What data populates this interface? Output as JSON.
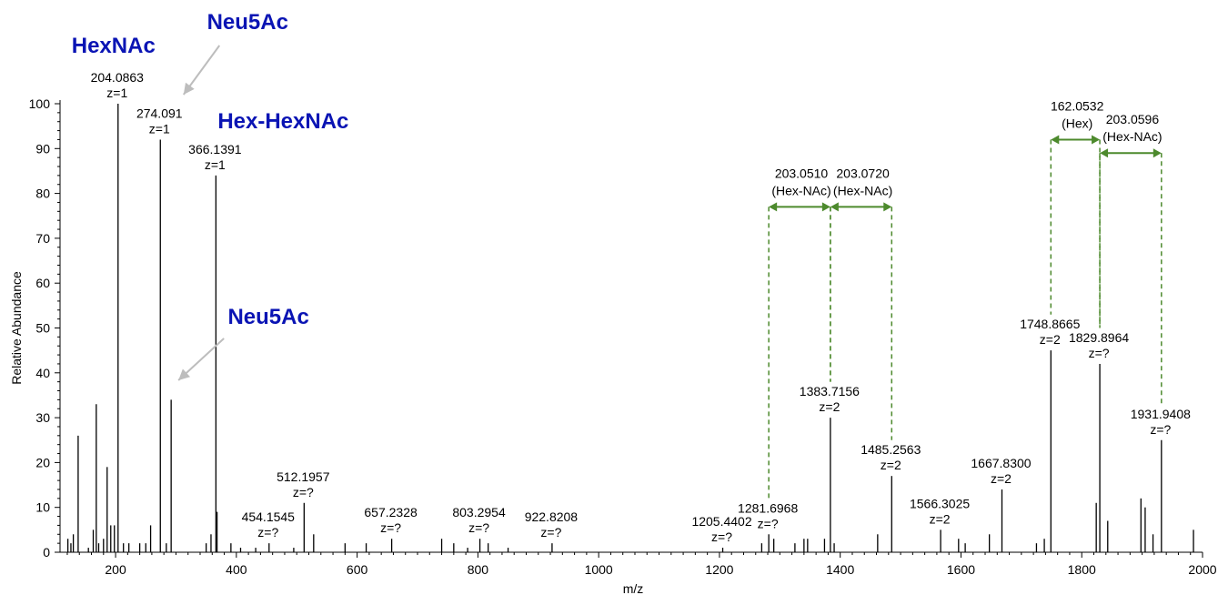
{
  "chart_data": {
    "type": "line",
    "subtype": "mass-spectrum-sticks",
    "xlabel": "m/z",
    "ylabel": "Relative Abundance",
    "xlim": [
      108,
      2000
    ],
    "ylim": [
      0,
      100
    ],
    "x_ticks": [
      200,
      400,
      600,
      800,
      1000,
      1200,
      1400,
      1600,
      1800,
      2000
    ],
    "y_ticks": [
      0,
      10,
      20,
      30,
      40,
      50,
      60,
      70,
      80,
      90,
      100
    ],
    "peaks": [
      {
        "mz": 121,
        "intensity": 3
      },
      {
        "mz": 126,
        "intensity": 2
      },
      {
        "mz": 130,
        "intensity": 4
      },
      {
        "mz": 138,
        "intensity": 26
      },
      {
        "mz": 155,
        "intensity": 1
      },
      {
        "mz": 163,
        "intensity": 5
      },
      {
        "mz": 168,
        "intensity": 33
      },
      {
        "mz": 172,
        "intensity": 2
      },
      {
        "mz": 180,
        "intensity": 3
      },
      {
        "mz": 186,
        "intensity": 19
      },
      {
        "mz": 192,
        "intensity": 6
      },
      {
        "mz": 198,
        "intensity": 6
      },
      {
        "mz": 204.0863,
        "intensity": 100
      },
      {
        "mz": 213,
        "intensity": 2
      },
      {
        "mz": 222,
        "intensity": 2
      },
      {
        "mz": 240,
        "intensity": 2
      },
      {
        "mz": 250,
        "intensity": 2
      },
      {
        "mz": 258,
        "intensity": 6
      },
      {
        "mz": 274.091,
        "intensity": 92
      },
      {
        "mz": 284,
        "intensity": 2
      },
      {
        "mz": 292,
        "intensity": 34
      },
      {
        "mz": 350,
        "intensity": 2
      },
      {
        "mz": 358,
        "intensity": 4
      },
      {
        "mz": 366.1391,
        "intensity": 84
      },
      {
        "mz": 368,
        "intensity": 9
      },
      {
        "mz": 391,
        "intensity": 2
      },
      {
        "mz": 407,
        "intensity": 1
      },
      {
        "mz": 432,
        "intensity": 1
      },
      {
        "mz": 454.1545,
        "intensity": 2
      },
      {
        "mz": 495,
        "intensity": 1
      },
      {
        "mz": 512.1957,
        "intensity": 11
      },
      {
        "mz": 528,
        "intensity": 4
      },
      {
        "mz": 580,
        "intensity": 2
      },
      {
        "mz": 615,
        "intensity": 2
      },
      {
        "mz": 657.2328,
        "intensity": 3
      },
      {
        "mz": 740,
        "intensity": 3
      },
      {
        "mz": 760,
        "intensity": 2
      },
      {
        "mz": 783,
        "intensity": 1
      },
      {
        "mz": 803.2954,
        "intensity": 3
      },
      {
        "mz": 817,
        "intensity": 2
      },
      {
        "mz": 850,
        "intensity": 1
      },
      {
        "mz": 922.8208,
        "intensity": 2
      },
      {
        "mz": 1205.4402,
        "intensity": 1
      },
      {
        "mz": 1270,
        "intensity": 2
      },
      {
        "mz": 1281.6968,
        "intensity": 4
      },
      {
        "mz": 1290,
        "intensity": 3
      },
      {
        "mz": 1325,
        "intensity": 2
      },
      {
        "mz": 1340,
        "intensity": 3
      },
      {
        "mz": 1346,
        "intensity": 3
      },
      {
        "mz": 1374,
        "intensity": 3
      },
      {
        "mz": 1383.7156,
        "intensity": 30
      },
      {
        "mz": 1390,
        "intensity": 2
      },
      {
        "mz": 1462,
        "intensity": 4
      },
      {
        "mz": 1485.2563,
        "intensity": 17
      },
      {
        "mz": 1566.3025,
        "intensity": 5
      },
      {
        "mz": 1596,
        "intensity": 3
      },
      {
        "mz": 1607,
        "intensity": 2
      },
      {
        "mz": 1647,
        "intensity": 4
      },
      {
        "mz": 1667.83,
        "intensity": 14
      },
      {
        "mz": 1725,
        "intensity": 2
      },
      {
        "mz": 1738,
        "intensity": 3
      },
      {
        "mz": 1748.8665,
        "intensity": 45
      },
      {
        "mz": 1824,
        "intensity": 11
      },
      {
        "mz": 1829.8964,
        "intensity": 42
      },
      {
        "mz": 1843,
        "intensity": 7
      },
      {
        "mz": 1898,
        "intensity": 12
      },
      {
        "mz": 1905,
        "intensity": 10
      },
      {
        "mz": 1918,
        "intensity": 4
      },
      {
        "mz": 1931.9408,
        "intensity": 25
      },
      {
        "mz": 1985,
        "intensity": 5
      }
    ],
    "peak_labels": [
      {
        "mz": 204.0863,
        "mass": "204.0863",
        "charge": "z=1"
      },
      {
        "mz": 274.091,
        "mass": "274.091",
        "charge": "z=1"
      },
      {
        "mz": 366.1391,
        "mass": "366.1391",
        "charge": "z=1"
      },
      {
        "mz": 454.1545,
        "mass": "454.1545",
        "charge": "z=?"
      },
      {
        "mz": 512.1957,
        "mass": "512.1957",
        "charge": "z=?"
      },
      {
        "mz": 657.2328,
        "mass": "657.2328",
        "charge": "z=?"
      },
      {
        "mz": 803.2954,
        "mass": "803.2954",
        "charge": "z=?"
      },
      {
        "mz": 922.8208,
        "mass": "922.8208",
        "charge": "z=?"
      },
      {
        "mz": 1205.4402,
        "mass": "1205.4402",
        "charge": "z=?"
      },
      {
        "mz": 1281.6968,
        "mass": "1281.6968",
        "charge": "z=?"
      },
      {
        "mz": 1383.7156,
        "mass": "1383.7156",
        "charge": "z=2"
      },
      {
        "mz": 1485.2563,
        "mass": "1485.2563",
        "charge": "z=2"
      },
      {
        "mz": 1566.3025,
        "mass": "1566.3025",
        "charge": "z=2"
      },
      {
        "mz": 1667.83,
        "mass": "1667.8300",
        "charge": "z=2"
      },
      {
        "mz": 1748.8665,
        "mass": "1748.8665",
        "charge": "z=2"
      },
      {
        "mz": 1829.8964,
        "mass": "1829.8964",
        "charge": "z=?"
      },
      {
        "mz": 1931.9408,
        "mass": "1931.9408",
        "charge": "z=?"
      }
    ],
    "annotations": [
      {
        "text": "HexNAc",
        "color": "#0a14b4",
        "near_mz": 204.0863
      },
      {
        "text": "Neu5Ac",
        "color": "#0a14b4",
        "near_mz": 274.091
      },
      {
        "text": "Hex-HexNAc",
        "color": "#0a14b4",
        "near_mz": 366.1391
      },
      {
        "text": "Neu5Ac",
        "color": "#0a14b4",
        "near_mz": 292
      }
    ],
    "mass_intervals": [
      {
        "from_mz": 1281.6968,
        "to_mz": 1383.7156,
        "value": "203.0510",
        "label": "(Hex-NAc)"
      },
      {
        "from_mz": 1383.7156,
        "to_mz": 1485.2563,
        "value": "203.0720",
        "label": "(Hex-NAc)"
      },
      {
        "from_mz": 1748.8665,
        "to_mz": 1829.8964,
        "value": "162.0532",
        "label": "(Hex)"
      },
      {
        "from_mz": 1829.8964,
        "to_mz": 1931.9408,
        "value": "203.0596",
        "label": "(Hex-NAc)"
      }
    ],
    "colors": {
      "peaks": "#000000",
      "annotation_text": "#0a14b4",
      "interval": "#4d8a2d",
      "arrow": "#bdbdbd"
    }
  }
}
